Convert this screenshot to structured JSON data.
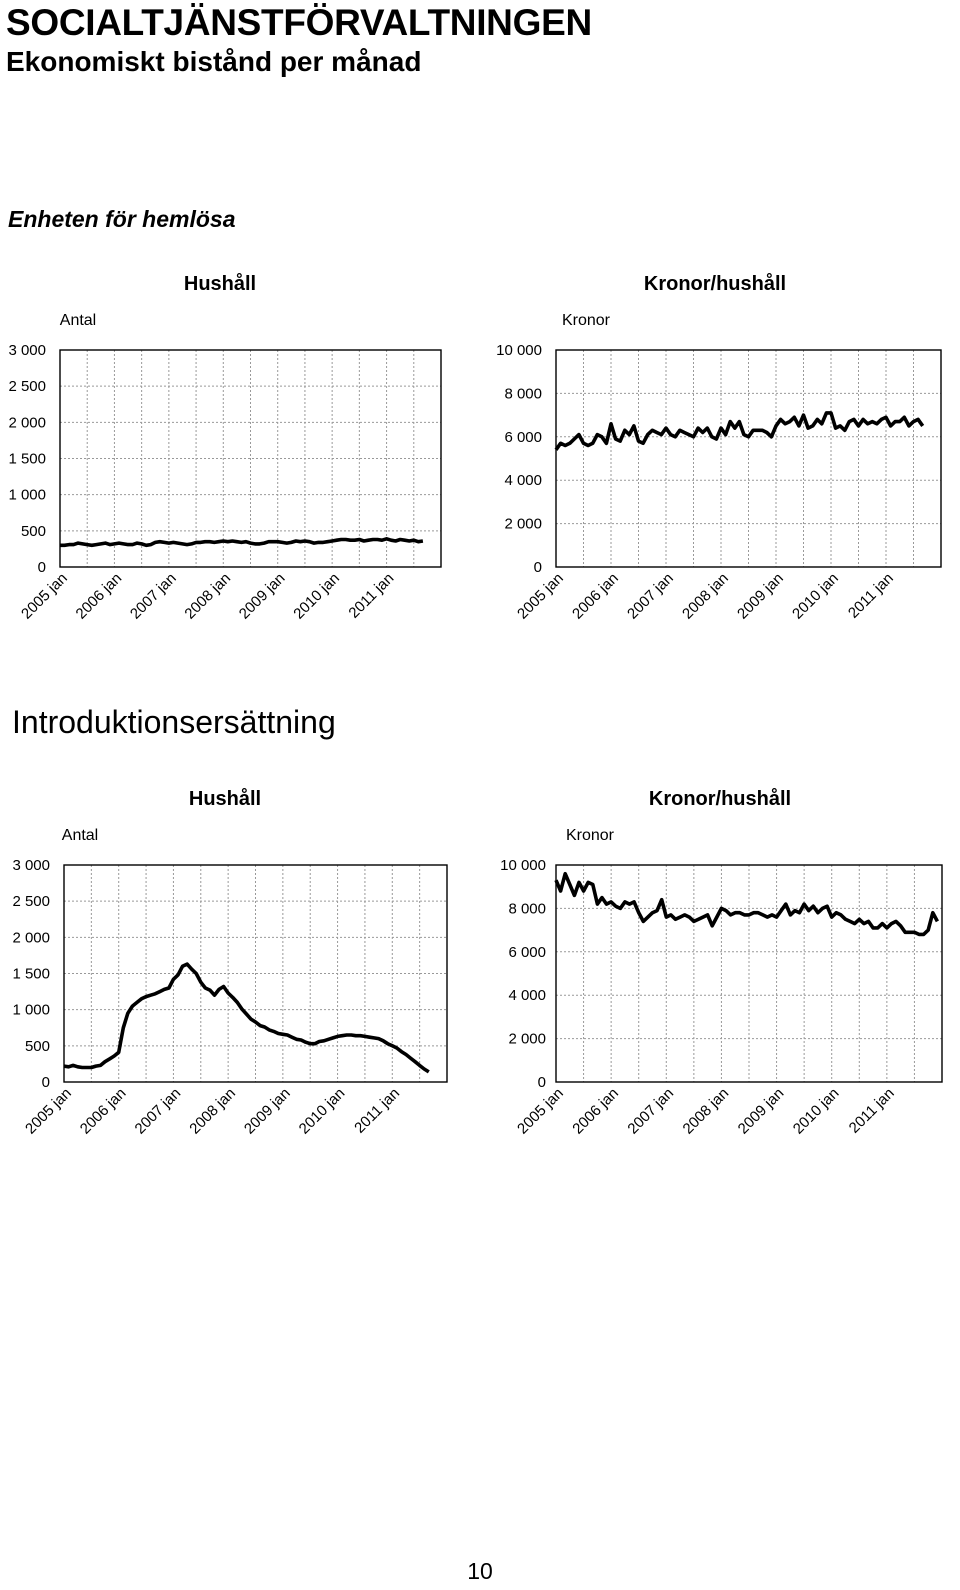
{
  "header": {
    "title": "SOCIALTJÄNSTFÖRVALTNINGEN",
    "subtitle": "Ekonomiskt bistånd per månad"
  },
  "sections": {
    "first": "Enheten för hemlösa",
    "second": "Introduktionsersättning"
  },
  "page_number": "10",
  "chart_data": [
    {
      "type": "line",
      "title": "Hushåll",
      "ylabel": "Antal",
      "ylim": [
        0,
        3000
      ],
      "yticks": [
        "0",
        "500",
        "1 000",
        "1 500",
        "2 000",
        "2 500",
        "3 000"
      ],
      "x_tick_labels": [
        "2005 jan",
        "2006 jan",
        "2007 jan",
        "2008 jan",
        "2009 jan",
        "2010 jan",
        "2011 jan"
      ],
      "x_start": "2005 jan",
      "grid": true,
      "series": [
        {
          "values": [
            300,
            300,
            310,
            310,
            330,
            320,
            310,
            300,
            310,
            320,
            330,
            310,
            320,
            330,
            320,
            310,
            310,
            330,
            320,
            300,
            310,
            340,
            350,
            340,
            330,
            340,
            330,
            320,
            310,
            320,
            340,
            340,
            350,
            350,
            340,
            350,
            360,
            350,
            360,
            350,
            340,
            350,
            330,
            320,
            320,
            330,
            350,
            350,
            350,
            340,
            330,
            340,
            360,
            350,
            360,
            350,
            330,
            340,
            340,
            350,
            360,
            370,
            380,
            380,
            370,
            370,
            380,
            360,
            370,
            380,
            380,
            370,
            390,
            370,
            360,
            380,
            370,
            360,
            370,
            350,
            360
          ]
        }
      ]
    },
    {
      "type": "line",
      "title": "Kronor/hushåll",
      "ylabel": "Kronor",
      "ylim": [
        0,
        10000
      ],
      "yticks": [
        "0",
        "2 000",
        "4 000",
        "6 000",
        "8 000",
        "10 000"
      ],
      "x_tick_labels": [
        "2005 jan",
        "2006 jan",
        "2007 jan",
        "2008 jan",
        "2009 jan",
        "2010 jan",
        "2011 jan"
      ],
      "x_start": "2005 jan",
      "grid": true,
      "series": [
        {
          "values": [
            5400,
            5700,
            5600,
            5700,
            5900,
            6100,
            5700,
            5600,
            5700,
            6100,
            6000,
            5700,
            6600,
            5900,
            5800,
            6300,
            6100,
            6500,
            5800,
            5700,
            6100,
            6300,
            6200,
            6100,
            6400,
            6100,
            6000,
            6300,
            6200,
            6100,
            6000,
            6400,
            6200,
            6400,
            6000,
            5900,
            6400,
            6100,
            6700,
            6400,
            6700,
            6100,
            6000,
            6300,
            6300,
            6300,
            6200,
            6000,
            6500,
            6800,
            6600,
            6700,
            6900,
            6500,
            7000,
            6400,
            6500,
            6800,
            6600,
            7100,
            7100,
            6400,
            6500,
            6300,
            6700,
            6800,
            6500,
            6800,
            6600,
            6700,
            6600,
            6800,
            6900,
            6500,
            6700,
            6700,
            6900,
            6500,
            6700,
            6800,
            6500
          ]
        }
      ]
    },
    {
      "type": "line",
      "title": "Hushåll",
      "ylabel": "Antal",
      "ylim": [
        0,
        3000
      ],
      "yticks": [
        "0",
        "500",
        "1 000",
        "1 500",
        "2 000",
        "2 500",
        "3 000"
      ],
      "x_tick_labels": [
        "2005 jan",
        "2006 jan",
        "2007 jan",
        "2008 jan",
        "2009 jan",
        "2010 jan",
        "2011 jan"
      ],
      "x_start": "2005 jan",
      "grid": true,
      "series": [
        {
          "values": [
            220,
            210,
            230,
            210,
            200,
            200,
            200,
            220,
            230,
            280,
            320,
            360,
            410,
            750,
            950,
            1050,
            1100,
            1150,
            1180,
            1200,
            1220,
            1250,
            1280,
            1300,
            1420,
            1480,
            1600,
            1630,
            1560,
            1500,
            1380,
            1300,
            1270,
            1200,
            1280,
            1320,
            1230,
            1170,
            1100,
            1010,
            940,
            870,
            830,
            780,
            760,
            720,
            700,
            670,
            660,
            650,
            620,
            590,
            580,
            550,
            530,
            530,
            560,
            570,
            590,
            610,
            630,
            640,
            650,
            650,
            640,
            640,
            630,
            620,
            610,
            600,
            570,
            530,
            500,
            470,
            420,
            380,
            330,
            280,
            230,
            180,
            140
          ]
        }
      ]
    },
    {
      "type": "line",
      "title": "Kronor/hushåll",
      "ylabel": "Kronor",
      "ylim": [
        0,
        10000
      ],
      "yticks": [
        "0",
        "2 000",
        "4 000",
        "6 000",
        "8 000",
        "10 000"
      ],
      "x_tick_labels": [
        "2005 jan",
        "2006 jan",
        "2007 jan",
        "2008 jan",
        "2009 jan",
        "2010 jan",
        "2011 jan"
      ],
      "x_start": "2005 jan",
      "grid": true,
      "series": [
        {
          "values": [
            9300,
            8800,
            9600,
            9100,
            8600,
            9200,
            8800,
            9200,
            9100,
            8200,
            8500,
            8200,
            8300,
            8100,
            8000,
            8300,
            8200,
            8300,
            7800,
            7400,
            7600,
            7800,
            7900,
            8400,
            7600,
            7700,
            7500,
            7600,
            7700,
            7600,
            7400,
            7500,
            7600,
            7700,
            7200,
            7600,
            8000,
            7900,
            7700,
            7800,
            7800,
            7700,
            7700,
            7800,
            7800,
            7700,
            7600,
            7700,
            7600,
            7900,
            8200,
            7700,
            7900,
            7800,
            8200,
            7900,
            8100,
            7800,
            8000,
            8100,
            7600,
            7800,
            7700,
            7500,
            7400,
            7300,
            7500,
            7300,
            7400,
            7100,
            7100,
            7300,
            7100,
            7300,
            7400,
            7200,
            6900,
            6900,
            6900,
            6800,
            6800,
            7000,
            7800,
            7400
          ]
        }
      ]
    }
  ]
}
